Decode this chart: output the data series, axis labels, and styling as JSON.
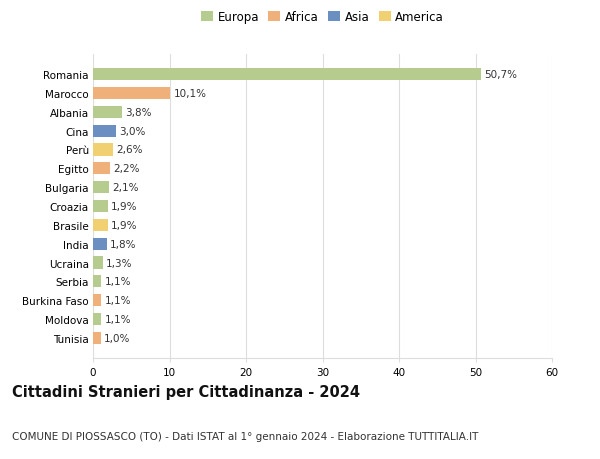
{
  "countries": [
    "Romania",
    "Marocco",
    "Albania",
    "Cina",
    "Perù",
    "Egitto",
    "Bulgaria",
    "Croazia",
    "Brasile",
    "India",
    "Ucraina",
    "Serbia",
    "Burkina Faso",
    "Moldova",
    "Tunisia"
  ],
  "values": [
    50.7,
    10.1,
    3.8,
    3.0,
    2.6,
    2.2,
    2.1,
    1.9,
    1.9,
    1.8,
    1.3,
    1.1,
    1.1,
    1.1,
    1.0
  ],
  "labels": [
    "50,7%",
    "10,1%",
    "3,8%",
    "3,0%",
    "2,6%",
    "2,2%",
    "2,1%",
    "1,9%",
    "1,9%",
    "1,8%",
    "1,3%",
    "1,1%",
    "1,1%",
    "1,1%",
    "1,0%"
  ],
  "continents": [
    "Europa",
    "Africa",
    "Europa",
    "Asia",
    "America",
    "Africa",
    "Europa",
    "Europa",
    "America",
    "Asia",
    "Europa",
    "Europa",
    "Africa",
    "Europa",
    "Africa"
  ],
  "continent_colors": {
    "Europa": "#b5cc8e",
    "Africa": "#f0b07a",
    "Asia": "#6a8fc0",
    "America": "#f0d070"
  },
  "legend_entries": [
    "Europa",
    "Africa",
    "Asia",
    "America"
  ],
  "legend_colors": [
    "#b5cc8e",
    "#f0b07a",
    "#6a8fc0",
    "#f0d070"
  ],
  "title": "Cittadini Stranieri per Cittadinanza - 2024",
  "subtitle": "COMUNE DI PIOSSASCO (TO) - Dati ISTAT al 1° gennaio 2024 - Elaborazione TUTTITALIA.IT",
  "xlim": [
    0,
    60
  ],
  "xticks": [
    0,
    10,
    20,
    30,
    40,
    50,
    60
  ],
  "background_color": "#ffffff",
  "grid_color": "#dddddd",
  "bar_height": 0.65,
  "title_fontsize": 10.5,
  "subtitle_fontsize": 7.5,
  "label_fontsize": 7.5,
  "tick_fontsize": 7.5,
  "legend_fontsize": 8.5
}
